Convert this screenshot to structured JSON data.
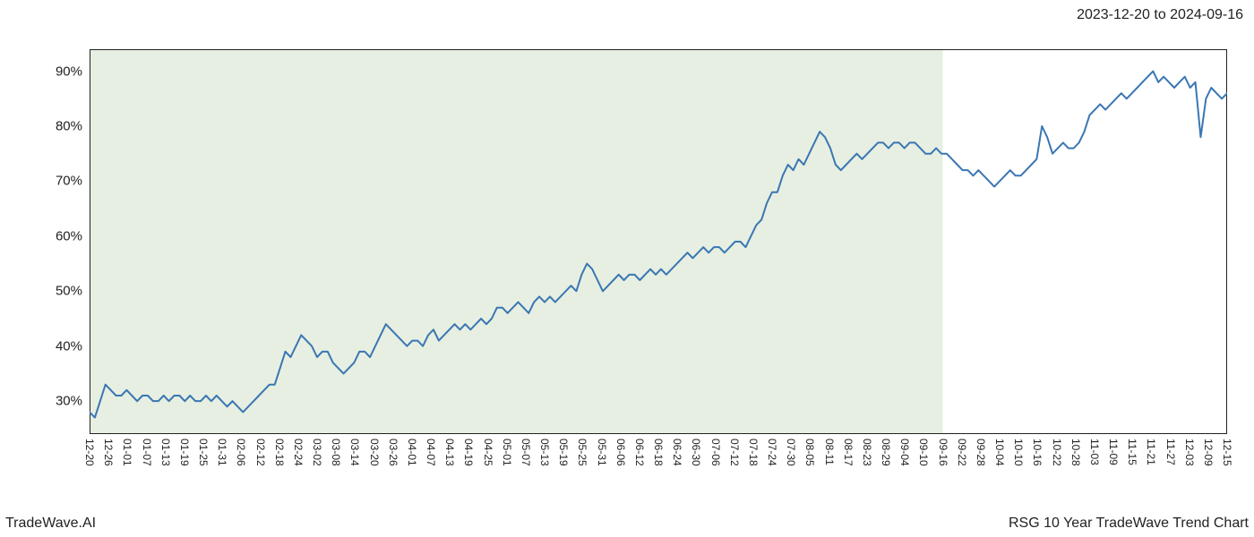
{
  "header": {
    "date_range": "2023-12-20 to 2024-09-16"
  },
  "footer": {
    "left": "TradeWave.AI",
    "right": "RSG 10 Year TradeWave Trend Chart"
  },
  "chart": {
    "type": "line",
    "background_color": "#ffffff",
    "shaded_region_color": "#e6efe1",
    "line_color": "#3a76b3",
    "line_width": 2,
    "border_color": "#222222",
    "tick_color": "#222222",
    "tick_label_color": "#222222",
    "tick_label_fontsize_y": 15,
    "tick_label_fontsize_x": 12,
    "ylim": [
      24,
      94
    ],
    "y_ticks": [
      30,
      40,
      50,
      60,
      70,
      80,
      90
    ],
    "y_tick_labels": [
      "30%",
      "40%",
      "50%",
      "60%",
      "70%",
      "80%",
      "90%"
    ],
    "x_tick_labels": [
      "12-20",
      "12-26",
      "01-01",
      "01-07",
      "01-13",
      "01-19",
      "01-25",
      "01-31",
      "02-06",
      "02-12",
      "02-18",
      "02-24",
      "03-02",
      "03-08",
      "03-14",
      "03-20",
      "03-26",
      "04-01",
      "04-07",
      "04-13",
      "04-19",
      "04-25",
      "05-01",
      "05-07",
      "05-13",
      "05-19",
      "05-25",
      "05-31",
      "06-06",
      "06-12",
      "06-18",
      "06-24",
      "06-30",
      "07-06",
      "07-12",
      "07-18",
      "07-24",
      "07-30",
      "08-05",
      "08-11",
      "08-17",
      "08-23",
      "08-29",
      "09-04",
      "09-10",
      "09-16",
      "09-22",
      "09-28",
      "10-04",
      "10-10",
      "10-16",
      "10-22",
      "10-28",
      "11-03",
      "11-09",
      "11-15",
      "11-21",
      "11-27",
      "12-03",
      "12-09",
      "12-15"
    ],
    "shaded_region": {
      "start_index": 0,
      "end_index": 45
    },
    "x_label_start_index": 0,
    "series": [
      28,
      27,
      30,
      33,
      32,
      31,
      31,
      32,
      31,
      30,
      31,
      31,
      30,
      30,
      31,
      30,
      31,
      31,
      30,
      31,
      30,
      30,
      31,
      30,
      31,
      30,
      29,
      30,
      29,
      28,
      29,
      30,
      31,
      32,
      33,
      33,
      36,
      39,
      38,
      40,
      42,
      41,
      40,
      38,
      39,
      39,
      37,
      36,
      35,
      36,
      37,
      39,
      39,
      38,
      40,
      42,
      44,
      43,
      42,
      41,
      40,
      41,
      41,
      40,
      42,
      43,
      41,
      42,
      43,
      44,
      43,
      44,
      43,
      44,
      45,
      44,
      45,
      47,
      47,
      46,
      47,
      48,
      47,
      46,
      48,
      49,
      48,
      49,
      48,
      49,
      50,
      51,
      50,
      53,
      55,
      54,
      52,
      50,
      51,
      52,
      53,
      52,
      53,
      53,
      52,
      53,
      54,
      53,
      54,
      53,
      54,
      55,
      56,
      57,
      56,
      57,
      58,
      57,
      58,
      58,
      57,
      58,
      59,
      59,
      58,
      60,
      62,
      63,
      66,
      68,
      68,
      71,
      73,
      72,
      74,
      73,
      75,
      77,
      79,
      78,
      76,
      73,
      72,
      73,
      74,
      75,
      74,
      75,
      76,
      77,
      77,
      76,
      77,
      77,
      76,
      77,
      77,
      76,
      75,
      75,
      76,
      75,
      75,
      74,
      73,
      72,
      72,
      71,
      72,
      71,
      70,
      69,
      70,
      71,
      72,
      71,
      71,
      72,
      73,
      74,
      80,
      78,
      75,
      76,
      77,
      76,
      76,
      77,
      79,
      82,
      83,
      84,
      83,
      84,
      85,
      86,
      85,
      86,
      87,
      88,
      89,
      90,
      88,
      89,
      88,
      87,
      88,
      89,
      87,
      88,
      78,
      85,
      87,
      86,
      85,
      86
    ]
  }
}
